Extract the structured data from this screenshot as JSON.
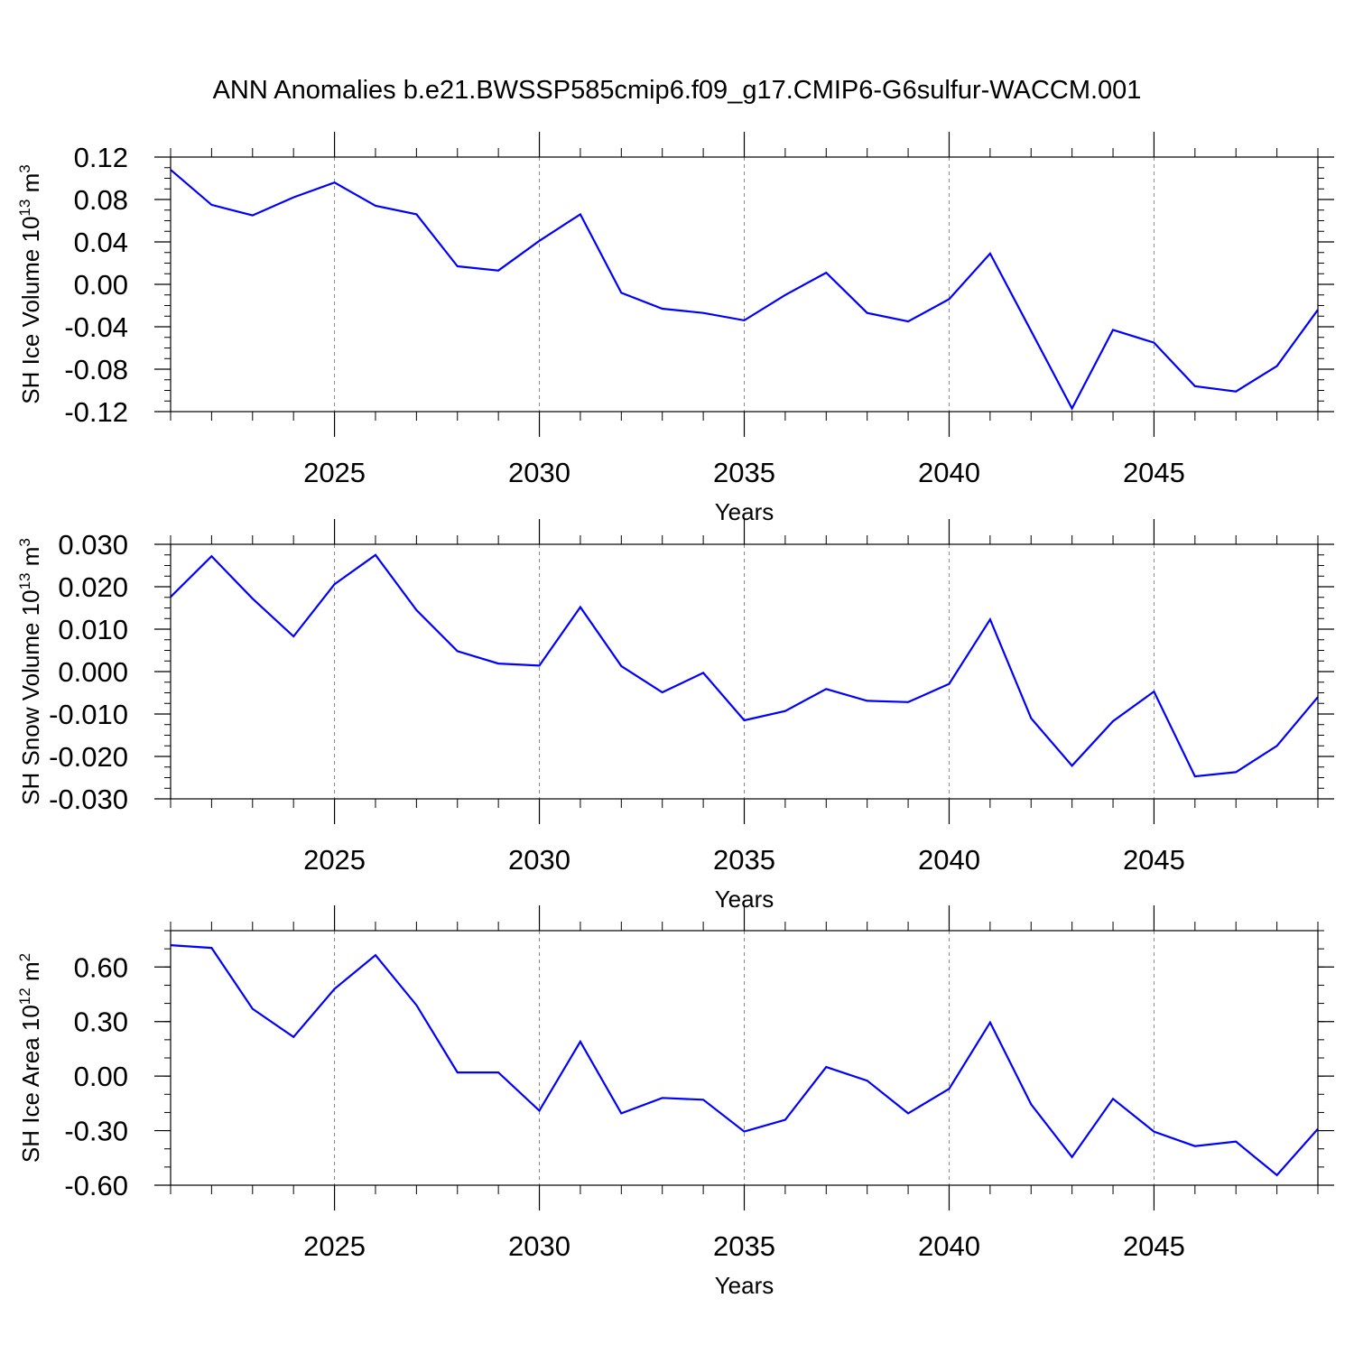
{
  "title": "ANN Anomalies b.e21.BWSSP585cmip6.f09_g17.CMIP6-G6sulfur-WACCM.001",
  "colors": {
    "line": "#0000ff",
    "axis": "#000000",
    "grid": "#888888",
    "background": "#ffffff"
  },
  "chart_data": [
    {
      "type": "line",
      "ylabel": "SH Ice Volume 10^13 m^3",
      "ylabel_main": "SH Ice Volume 10",
      "ylabel_exp": "13",
      "ylabel_unit": " m",
      "ylabel_unit_exp": "3",
      "xlabel": "Years",
      "xlim": [
        2021,
        2049
      ],
      "ylim": [
        -0.12,
        0.12
      ],
      "x_ticks": [
        2025,
        2030,
        2035,
        2040,
        2045
      ],
      "x_tick_labels": [
        "2025",
        "2030",
        "2035",
        "2040",
        "2045"
      ],
      "y_ticks": [
        -0.12,
        -0.08,
        -0.04,
        0.0,
        0.04,
        0.08,
        0.12
      ],
      "y_tick_labels": [
        "-0.12",
        "-0.08",
        "-0.04",
        "0.00",
        "0.04",
        "0.08",
        "0.12"
      ],
      "y_minor_step": 0.01,
      "grid": "vertical dashed at major x ticks",
      "series": [
        {
          "x": [
            2021,
            2022,
            2023,
            2024,
            2025,
            2026,
            2027,
            2028,
            2029,
            2030,
            2031,
            2032,
            2033,
            2034,
            2035,
            2036,
            2037,
            2038,
            2039,
            2040,
            2041,
            2042,
            2043,
            2044,
            2045,
            2046,
            2047,
            2048,
            2049
          ],
          "values": [
            0.108,
            0.075,
            0.065,
            0.082,
            0.096,
            0.074,
            0.066,
            0.017,
            0.013,
            0.041,
            0.066,
            -0.008,
            -0.023,
            -0.027,
            -0.034,
            -0.01,
            0.011,
            -0.027,
            -0.035,
            -0.014,
            0.029,
            -0.044,
            -0.117,
            -0.043,
            -0.055,
            -0.096,
            -0.101,
            -0.077,
            -0.024
          ]
        }
      ]
    },
    {
      "type": "line",
      "ylabel": "SH Snow Volume 10^13 m^3",
      "ylabel_main": "SH Snow Volume 10",
      "ylabel_exp": "13",
      "ylabel_unit": " m",
      "ylabel_unit_exp": "3",
      "xlabel": "Years",
      "xlim": [
        2021,
        2049
      ],
      "ylim": [
        -0.03,
        0.03
      ],
      "x_ticks": [
        2025,
        2030,
        2035,
        2040,
        2045
      ],
      "x_tick_labels": [
        "2025",
        "2030",
        "2035",
        "2040",
        "2045"
      ],
      "y_ticks": [
        -0.03,
        -0.02,
        -0.01,
        0.0,
        0.01,
        0.02,
        0.03
      ],
      "y_tick_labels": [
        "-0.030",
        "-0.020",
        "-0.010",
        "0.000",
        "0.010",
        "0.020",
        "0.030"
      ],
      "y_minor_step": 0.0025,
      "grid": "vertical dashed at major x ticks",
      "series": [
        {
          "x": [
            2021,
            2022,
            2023,
            2024,
            2025,
            2026,
            2027,
            2028,
            2029,
            2030,
            2031,
            2032,
            2033,
            2034,
            2035,
            2036,
            2037,
            2038,
            2039,
            2040,
            2041,
            2042,
            2043,
            2044,
            2045,
            2046,
            2047,
            2048,
            2049
          ],
          "values": [
            0.0176,
            0.0272,
            0.0172,
            0.0083,
            0.0206,
            0.0275,
            0.0145,
            0.0048,
            0.0019,
            0.0014,
            0.0152,
            0.0013,
            -0.0049,
            -0.0003,
            -0.0115,
            -0.0093,
            -0.0041,
            -0.0069,
            -0.0072,
            -0.0029,
            0.0123,
            -0.011,
            -0.0222,
            -0.0117,
            -0.0047,
            -0.0247,
            -0.0237,
            -0.0175,
            -0.006
          ]
        }
      ]
    },
    {
      "type": "line",
      "ylabel": "SH Ice Area 10^12 m^2",
      "ylabel_main": "SH Ice Area 10",
      "ylabel_exp": "12",
      "ylabel_unit": " m",
      "ylabel_unit_exp": "2",
      "xlabel": "Years",
      "xlim": [
        2021,
        2049
      ],
      "ylim": [
        -0.6,
        0.8
      ],
      "x_ticks": [
        2025,
        2030,
        2035,
        2040,
        2045
      ],
      "x_tick_labels": [
        "2025",
        "2030",
        "2035",
        "2040",
        "2045"
      ],
      "y_ticks": [
        -0.6,
        -0.3,
        0.0,
        0.3,
        0.6
      ],
      "y_tick_labels": [
        "-0.60",
        "-0.30",
        "0.00",
        "0.30",
        "0.60"
      ],
      "y_minor_step": 0.1,
      "grid": "vertical dashed at major x ticks",
      "series": [
        {
          "x": [
            2021,
            2022,
            2023,
            2024,
            2025,
            2026,
            2027,
            2028,
            2029,
            2030,
            2031,
            2032,
            2033,
            2034,
            2035,
            2036,
            2037,
            2038,
            2039,
            2040,
            2041,
            2042,
            2043,
            2044,
            2045,
            2046,
            2047,
            2048,
            2049
          ],
          "values": [
            0.72,
            0.705,
            0.37,
            0.215,
            0.48,
            0.665,
            0.39,
            0.02,
            0.02,
            -0.19,
            0.19,
            -0.205,
            -0.12,
            -0.13,
            -0.305,
            -0.24,
            0.05,
            -0.025,
            -0.205,
            -0.07,
            0.295,
            -0.155,
            -0.445,
            -0.125,
            -0.305,
            -0.385,
            -0.36,
            -0.545,
            -0.29
          ]
        }
      ]
    }
  ]
}
